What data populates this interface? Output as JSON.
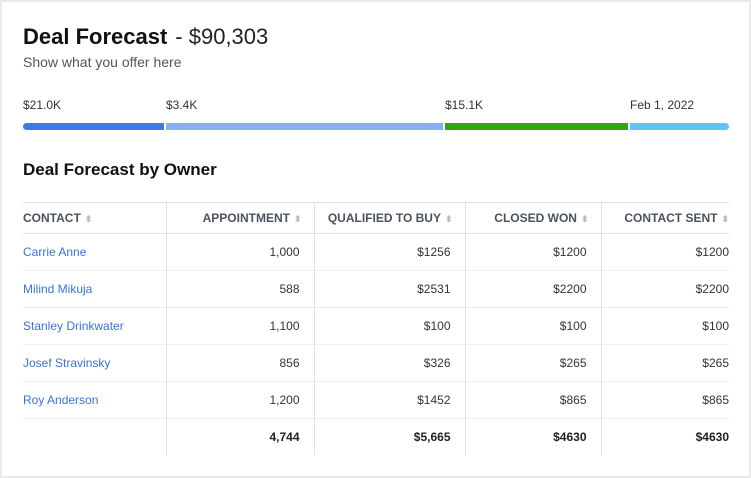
{
  "header": {
    "title": "Deal Forecast",
    "amount": "- $90,303",
    "subtitle": "Show what you offer here"
  },
  "progress": {
    "segments": [
      {
        "label": "$21.0K",
        "color": "#3b7be8"
      },
      {
        "label": "$3.4K",
        "color": "#8aaef5"
      },
      {
        "label": "$15.1K",
        "color": "#2aaa0f"
      },
      {
        "label": "Feb 1, 2022",
        "color": "#60c3f5"
      }
    ]
  },
  "table": {
    "title": "Deal Forecast by Owner",
    "columns": [
      "CONTACT",
      "APPOINTMENT",
      "QUALIFIED TO BUY",
      "CLOSED WON",
      "CONTACT SENT"
    ],
    "sort_icon": "sort-arrows-icon",
    "rows": [
      [
        "Carrie Anne",
        "1,000",
        "$1256",
        "$1200",
        "$1200"
      ],
      [
        "Milind Mikuja",
        "588",
        "$2531",
        "$2200",
        "$2200"
      ],
      [
        "Stanley Drinkwater",
        "1,100",
        "$100",
        "$100",
        "$100"
      ],
      [
        "Josef Stravinsky",
        "856",
        "$326",
        "$265",
        "$265"
      ],
      [
        "Roy Anderson",
        "1,200",
        "$1452",
        "$865",
        "$865"
      ]
    ],
    "totals": [
      "",
      "4,744",
      "$5,665",
      "$4630",
      "$4630"
    ]
  }
}
